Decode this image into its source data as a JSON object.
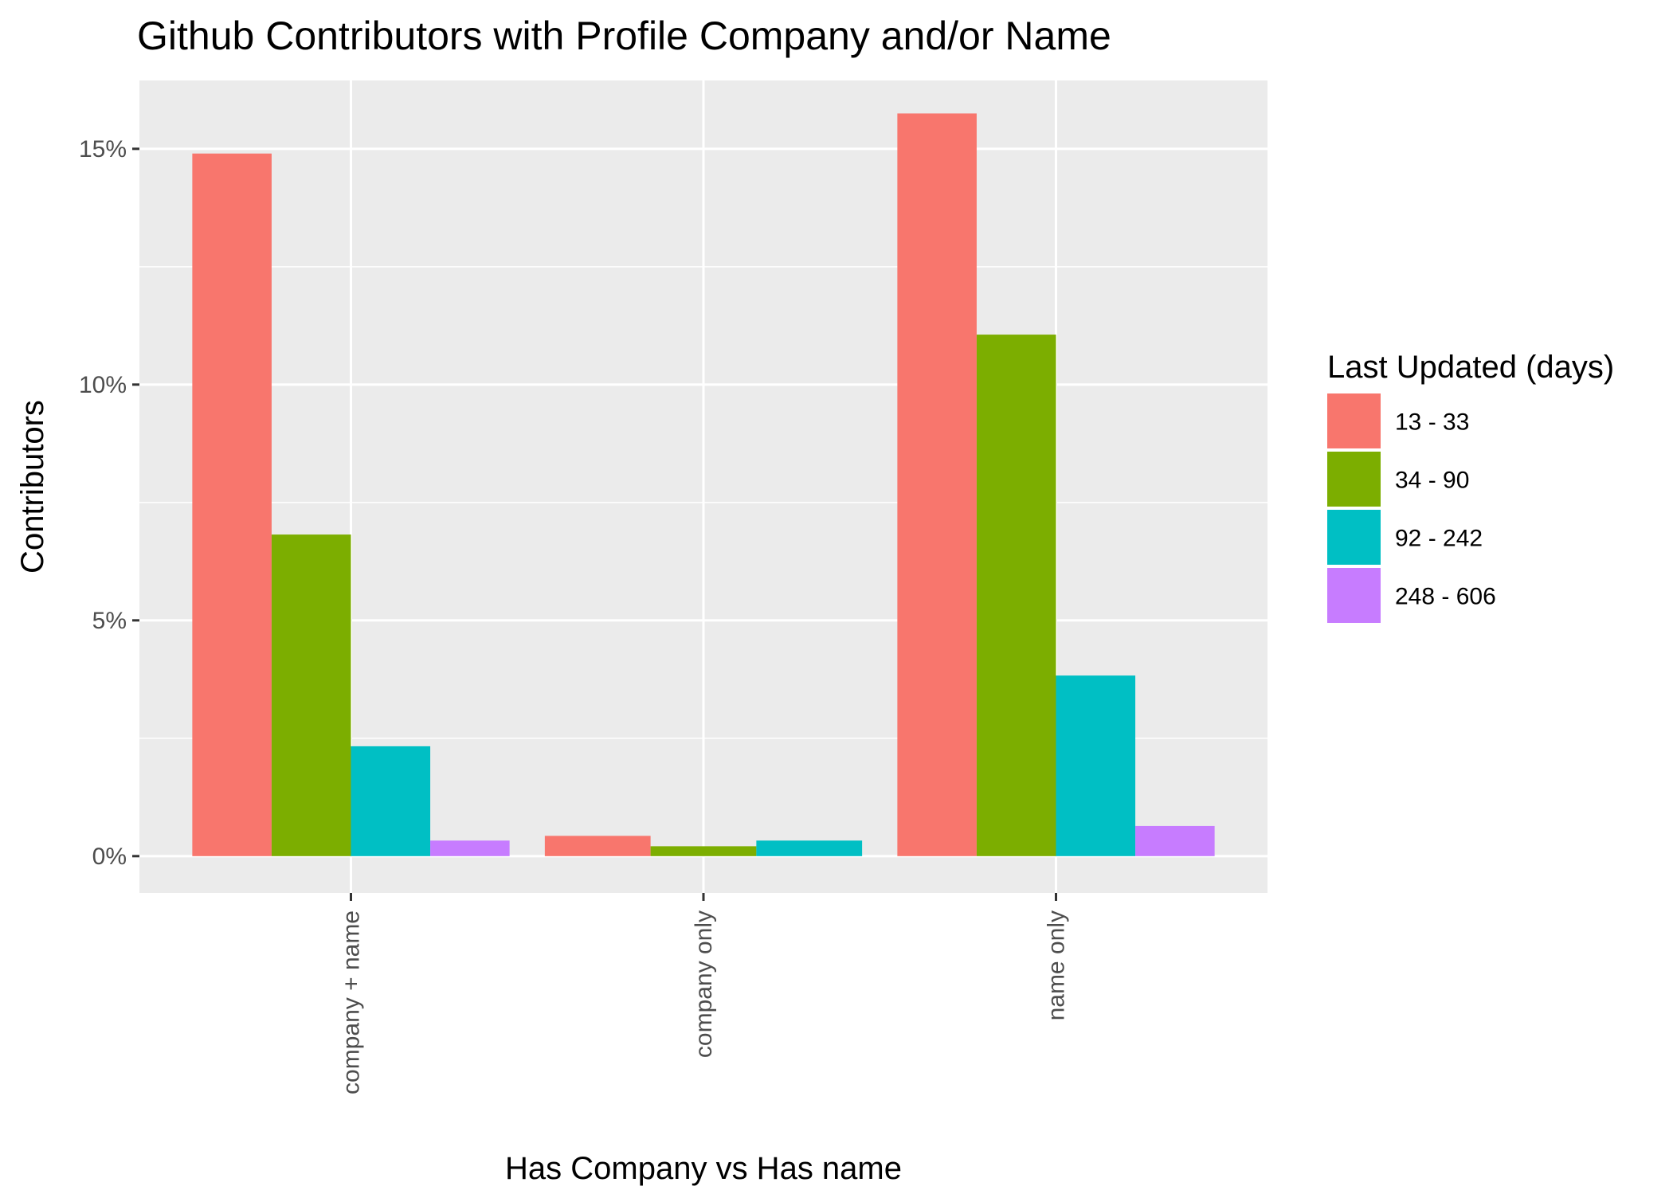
{
  "chart_data": {
    "type": "bar",
    "title": "Github Contributors with Profile Company and/or Name",
    "xlabel": "Has Company vs Has name",
    "ylabel": "Contributors",
    "categories": [
      "company + name",
      "company only",
      "name only"
    ],
    "ylim": [
      -0.0078,
      0.1645
    ],
    "yticks": [
      0,
      0.05,
      0.1,
      0.15
    ],
    "ytick_labels": [
      "0%",
      "5%",
      "10%",
      "15%"
    ],
    "grid": true,
    "legend": {
      "title": "Last Updated (days)",
      "position": "right"
    },
    "series": [
      {
        "name": "13 - 33",
        "color": "#F8766D",
        "values": [
          0.149,
          0.0043,
          0.1575
        ]
      },
      {
        "name": "34 - 90",
        "color": "#7CAE00",
        "values": [
          0.0682,
          0.0021,
          0.1106
        ]
      },
      {
        "name": "92 - 242",
        "color": "#00BFC4",
        "values": [
          0.0233,
          0.0033,
          0.0383
        ]
      },
      {
        "name": "248 - 606",
        "color": "#C77CFF",
        "values": [
          0.0033,
          null,
          0.0064
        ]
      }
    ]
  }
}
